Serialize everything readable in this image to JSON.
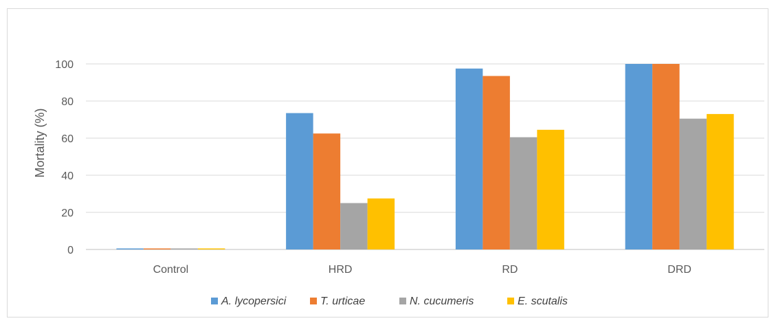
{
  "chart_data": {
    "type": "bar",
    "title": "",
    "xlabel": "",
    "ylabel": "Mortality (%)",
    "ylim": [
      0,
      110
    ],
    "yticks": [
      0,
      20,
      40,
      60,
      80,
      100
    ],
    "grid": true,
    "legend_position": "bottom",
    "categories": [
      "Control",
      "HRD",
      "RD",
      "DRD"
    ],
    "series": [
      {
        "name": "A. lycopersici",
        "color": "#5b9bd5",
        "values": [
          0.5,
          73.5,
          97.5,
          100
        ]
      },
      {
        "name": "T. urticae",
        "color": "#ed7d31",
        "values": [
          0.5,
          62.5,
          93.5,
          100
        ]
      },
      {
        "name": "N. cucumeris",
        "color": "#a5a5a5",
        "values": [
          0.5,
          25,
          60.5,
          70.5
        ]
      },
      {
        "name": "E. scutalis",
        "color": "#ffc000",
        "values": [
          0.5,
          27.5,
          64.5,
          73
        ]
      }
    ]
  }
}
